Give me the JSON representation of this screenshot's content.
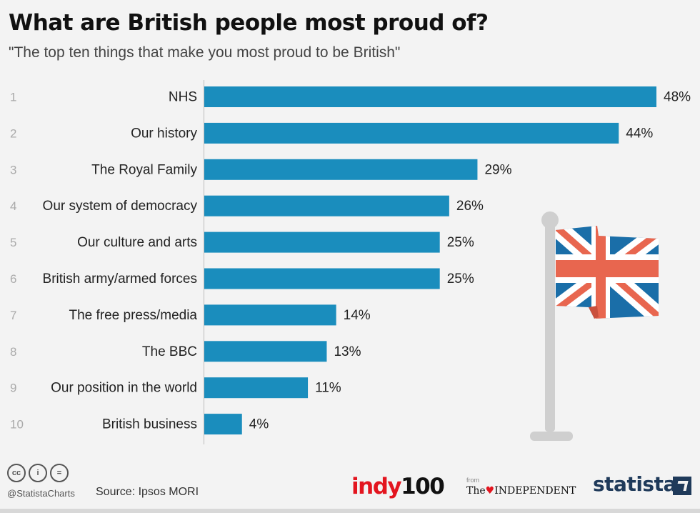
{
  "header": {
    "title": "What are British people most proud of?",
    "subtitle": "\"The top ten things that make you most proud to be British\""
  },
  "chart_data": {
    "type": "bar",
    "orientation": "horizontal",
    "categories": [
      "NHS",
      "Our history",
      "The Royal Family",
      "Our system of democracy",
      "Our culture and arts",
      "British army/armed forces",
      "The free press/media",
      "The BBC",
      "Our position in the world",
      "British business"
    ],
    "ranks": [
      "1",
      "2",
      "3",
      "4",
      "5",
      "6",
      "7",
      "8",
      "9",
      "10"
    ],
    "values": [
      48,
      44,
      29,
      26,
      25,
      25,
      14,
      13,
      11,
      4
    ],
    "value_labels": [
      "48%",
      "44%",
      "29%",
      "26%",
      "25%",
      "25%",
      "14%",
      "13%",
      "11%",
      "4%"
    ],
    "unit": "%",
    "title": "What are British people most proud of?",
    "subtitle": "\"The top ten things that make you most proud to be British\"",
    "xlabel": "",
    "ylabel": "",
    "xlim": [
      0,
      48
    ],
    "grid": false,
    "legend": "none",
    "bar_color": "#1a8dbd"
  },
  "illustration": {
    "icon": "union-jack-flag-icon",
    "flag_colors": {
      "blue": "#1a6ea8",
      "red": "#e8664f",
      "white": "#ffffff",
      "pole": "#cfcfcf"
    }
  },
  "footer": {
    "license_icons": [
      "cc-icon",
      "by-icon",
      "nd-icon"
    ],
    "license_glyphs": [
      "cc",
      "i",
      "="
    ],
    "handle": "@StatistaCharts",
    "source": "Source: Ipsos MORI",
    "indy_red": "indy",
    "indy_black": "100",
    "from": "from",
    "independent_the": "The",
    "independent_name": "INDEPENDENT",
    "statista": "statista"
  }
}
